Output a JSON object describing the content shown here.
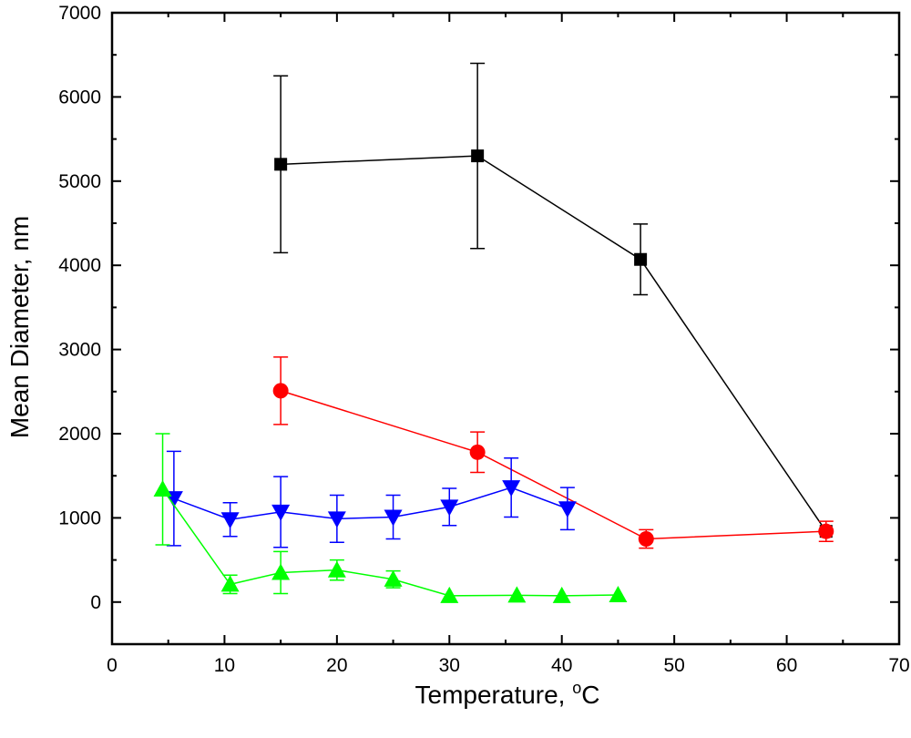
{
  "chart_data": {
    "type": "scatter",
    "title": "",
    "xlabel": "Temperature, ",
    "xlabel_sup": "o",
    "xlabel_unit": "C",
    "ylabel": "Mean Diameter, nm",
    "xlim": [
      0,
      70
    ],
    "ylim": [
      -500,
      7000
    ],
    "xticks": [
      0,
      10,
      20,
      30,
      40,
      50,
      60,
      70
    ],
    "yticks": [
      0,
      1000,
      2000,
      3000,
      4000,
      5000,
      6000,
      7000
    ],
    "grid": false,
    "series": [
      {
        "color": "#000000",
        "marker": "square",
        "x": [
          15,
          32.5,
          47,
          63.5
        ],
        "y": [
          5200,
          5300,
          4070,
          840
        ],
        "err": [
          1050,
          1100,
          420,
          0
        ]
      },
      {
        "color": "#ff0000",
        "marker": "circle",
        "x": [
          15,
          32.5,
          47.5,
          63.5
        ],
        "y": [
          2510,
          1780,
          750,
          840
        ],
        "err": [
          400,
          240,
          110,
          120
        ]
      },
      {
        "color": "#0000ff",
        "marker": "triangle-down",
        "x": [
          5.5,
          10.5,
          15,
          20,
          25,
          30,
          35.5,
          40.5
        ],
        "y": [
          1230,
          980,
          1070,
          990,
          1010,
          1130,
          1360,
          1110
        ],
        "err": [
          560,
          200,
          420,
          280,
          260,
          220,
          350,
          250
        ]
      },
      {
        "color": "#00ff00",
        "marker": "triangle-up",
        "x": [
          4.5,
          10.5,
          15,
          20,
          25,
          30,
          36,
          40,
          45
        ],
        "y": [
          1340,
          210,
          350,
          380,
          270,
          75,
          80,
          75,
          85
        ],
        "err": [
          660,
          110,
          250,
          120,
          100,
          0,
          0,
          0,
          0
        ]
      }
    ]
  }
}
